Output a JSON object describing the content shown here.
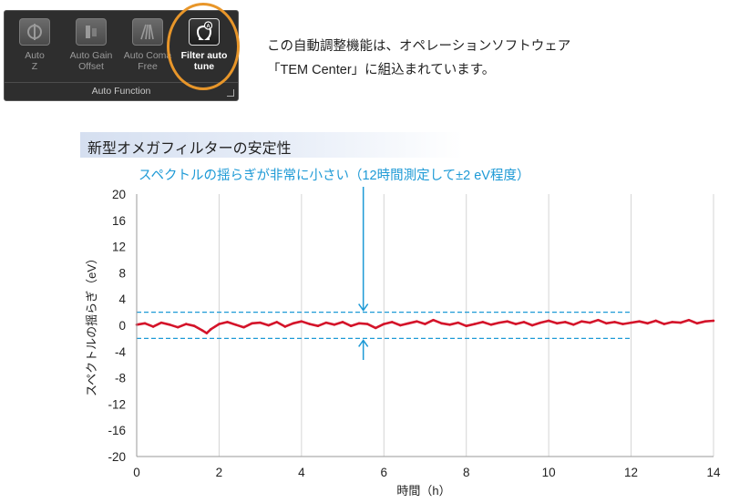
{
  "toolbar": {
    "buttons": [
      {
        "label": "Auto\nZ",
        "icon": "auto-z-icon",
        "active": false
      },
      {
        "label": "Auto Gain\nOffset",
        "icon": "auto-gain-icon",
        "active": false
      },
      {
        "label": "Auto Coma\nFree",
        "icon": "auto-coma-icon",
        "active": false
      },
      {
        "label": "Filter auto\ntune",
        "icon": "filter-auto-tune-icon",
        "active": true
      }
    ],
    "group_label": "Auto Function",
    "highlight_color": "#e8962a"
  },
  "description": {
    "line1": "この自動調整機能は、オペレーションソフトウェア",
    "line2": "「TEM Center」に組込まれています。"
  },
  "section": {
    "title": "新型オメガフィルターの安定性"
  },
  "chart_data": {
    "type": "line",
    "annotation": "スペクトルの揺らぎが非常に小さい（12時間測定して±2 eV程度）",
    "annotation_color": "#1e9ad6",
    "xlabel": "時間（h）",
    "ylabel": "スペクトルの揺らぎ（eV）",
    "xlim": [
      0,
      14
    ],
    "ylim": [
      -20,
      20
    ],
    "x_ticks": [
      0,
      2,
      4,
      6,
      8,
      10,
      12,
      14
    ],
    "y_ticks": [
      20,
      16,
      12,
      8,
      4,
      0,
      -4,
      -8,
      -12,
      -16,
      -20
    ],
    "grid": {
      "vertical": true,
      "horizontal": false
    },
    "band": {
      "upper": 2,
      "lower": -2,
      "x_end": 12,
      "color": "#1e9ad6"
    },
    "arrow_x": 5.5,
    "series": [
      {
        "color": "#d4142a",
        "x": [
          0,
          0.2,
          0.4,
          0.6,
          0.8,
          1.0,
          1.2,
          1.4,
          1.6,
          1.7,
          1.8,
          2.0,
          2.2,
          2.4,
          2.6,
          2.8,
          3.0,
          3.2,
          3.4,
          3.6,
          3.8,
          4.0,
          4.2,
          4.4,
          4.6,
          4.8,
          5.0,
          5.2,
          5.4,
          5.6,
          5.8,
          6.0,
          6.2,
          6.4,
          6.6,
          6.8,
          7.0,
          7.2,
          7.4,
          7.6,
          7.8,
          8.0,
          8.2,
          8.4,
          8.6,
          8.8,
          9.0,
          9.2,
          9.4,
          9.6,
          9.8,
          10.0,
          10.2,
          10.4,
          10.6,
          10.8,
          11.0,
          11.2,
          11.4,
          11.6,
          11.8,
          12.0,
          12.2,
          12.4,
          12.6,
          12.8,
          13.0,
          13.2,
          13.4,
          13.6,
          13.8,
          14.0
        ],
        "y": [
          0.1,
          0.3,
          -0.2,
          0.4,
          0.1,
          -0.3,
          0.2,
          -0.1,
          -0.8,
          -1.2,
          -0.6,
          0.2,
          0.5,
          0.1,
          -0.3,
          0.3,
          0.4,
          0.0,
          0.5,
          -0.2,
          0.3,
          0.6,
          0.2,
          -0.1,
          0.4,
          0.1,
          0.5,
          -0.1,
          0.3,
          0.2,
          -0.4,
          0.2,
          0.5,
          0.0,
          0.3,
          0.6,
          0.2,
          0.8,
          0.3,
          0.1,
          0.4,
          -0.1,
          0.2,
          0.5,
          0.1,
          0.4,
          0.6,
          0.2,
          0.5,
          0.0,
          0.4,
          0.7,
          0.3,
          0.5,
          0.1,
          0.6,
          0.4,
          0.8,
          0.3,
          0.5,
          0.2,
          0.4,
          0.6,
          0.3,
          0.7,
          0.2,
          0.5,
          0.4,
          0.8,
          0.3,
          0.6,
          0.7
        ]
      }
    ]
  }
}
